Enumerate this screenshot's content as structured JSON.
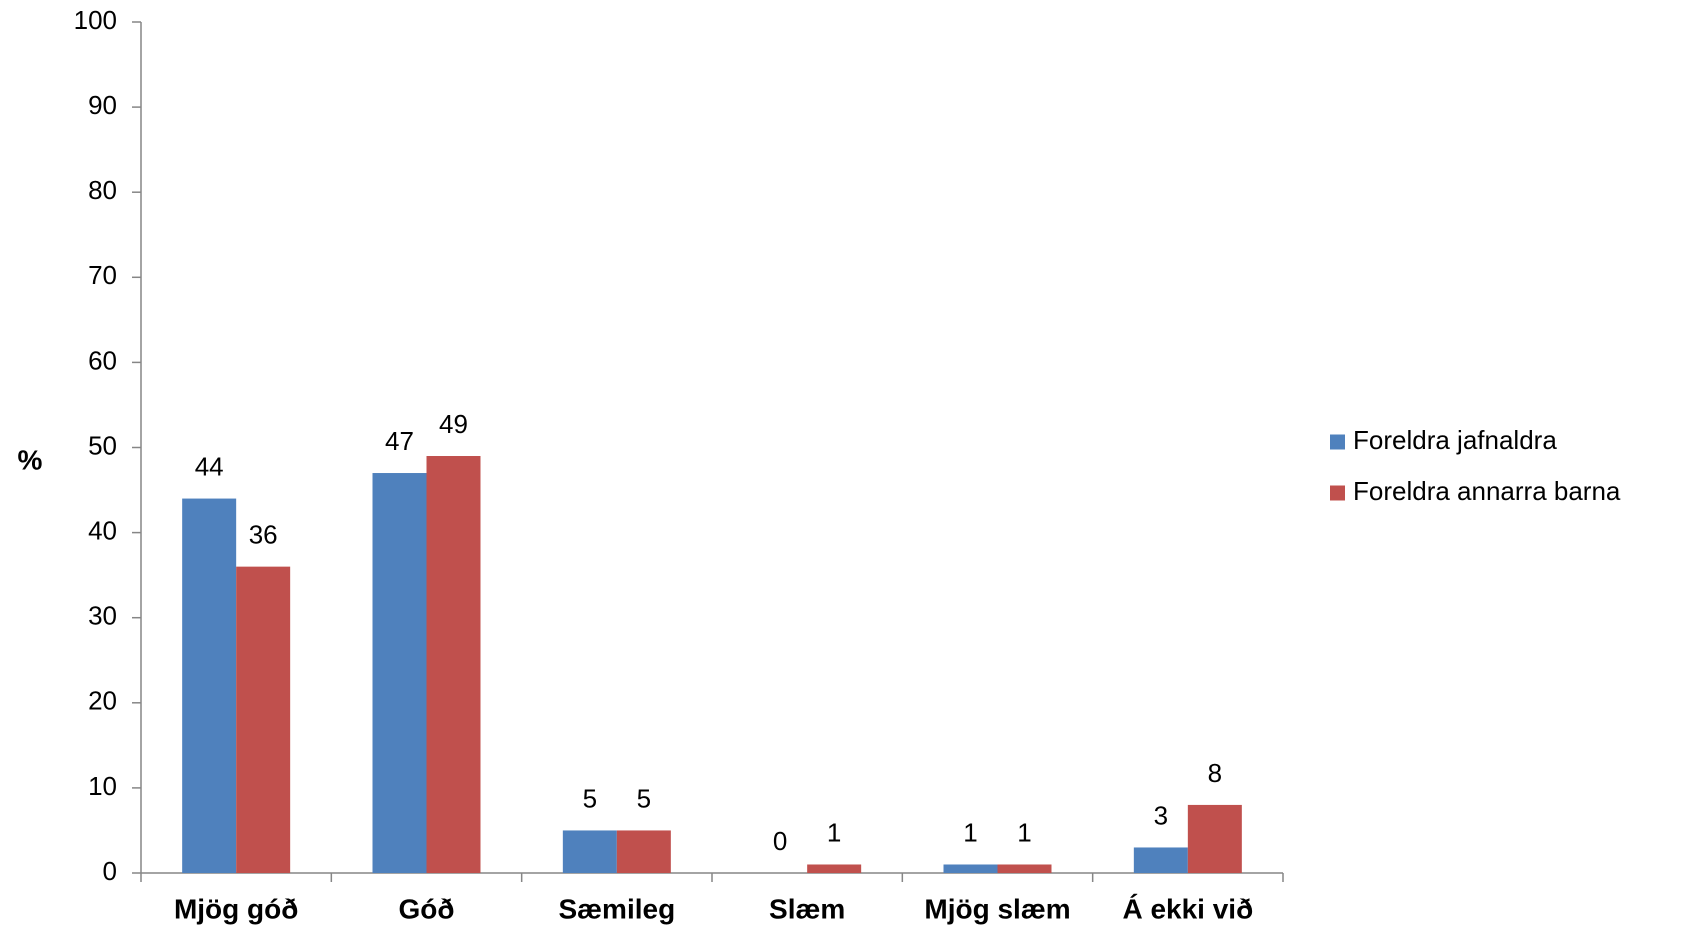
{
  "chart_data": {
    "type": "bar",
    "title": "",
    "xlabel": "",
    "ylabel": "%",
    "ylim": [
      0,
      100
    ],
    "yticks": [
      0,
      10,
      20,
      30,
      40,
      50,
      60,
      70,
      80,
      90,
      100
    ],
    "categories": [
      "Mjög góð",
      "Góð",
      "Sæmileg",
      "Slæm",
      "Mjög slæm",
      "Á ekki við"
    ],
    "series": [
      {
        "name": "Foreldra jafnaldra",
        "color": "#4F81BD",
        "values": [
          44,
          47,
          5,
          0,
          1,
          3
        ]
      },
      {
        "name": "Foreldra annarra barna",
        "color": "#C0504D",
        "values": [
          36,
          49,
          5,
          1,
          1,
          8
        ]
      }
    ],
    "grid": false,
    "legend_position": "right"
  }
}
